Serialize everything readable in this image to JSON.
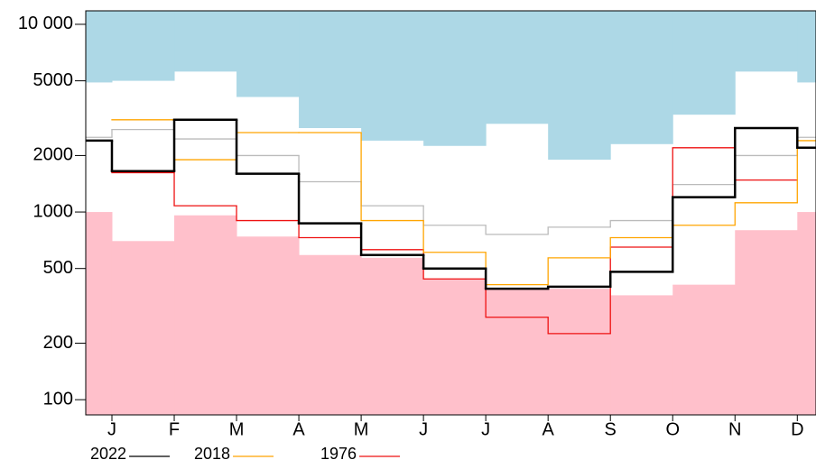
{
  "chart_data": {
    "type": "step",
    "x": [
      -1,
      0,
      1,
      2,
      3,
      4,
      5,
      6,
      7,
      8,
      9,
      10,
      11
    ],
    "xlim": [
      -0.42,
      11.3
    ],
    "xticks": [
      {
        "value": 0,
        "label": "J"
      },
      {
        "value": 1,
        "label": "F"
      },
      {
        "value": 2,
        "label": "M"
      },
      {
        "value": 3,
        "label": "A"
      },
      {
        "value": 4,
        "label": "M"
      },
      {
        "value": 5,
        "label": "J"
      },
      {
        "value": 6,
        "label": "J"
      },
      {
        "value": 7,
        "label": "A"
      },
      {
        "value": 8,
        "label": "S"
      },
      {
        "value": 9,
        "label": "O"
      },
      {
        "value": 10,
        "label": "N"
      },
      {
        "value": 11,
        "label": "D"
      }
    ],
    "ylim": [
      83,
      11800
    ],
    "log_scale": true,
    "yticks": [
      {
        "value": 10000,
        "label": "10 000"
      },
      5000,
      2000,
      1000,
      500,
      200,
      100
    ],
    "upper_band": {
      "color": "#add8e6",
      "values": [
        4900,
        5000,
        5600,
        4100,
        2800,
        2400,
        2250,
        2950,
        1900,
        2300,
        3300,
        5600,
        4900
      ]
    },
    "lower_band": {
      "color": "#ffc0cb",
      "values": [
        1000,
        700,
        960,
        740,
        590,
        570,
        440,
        390,
        390,
        360,
        410,
        800,
        1000
      ]
    },
    "reference_line": {
      "color": "#bbbbbb",
      "values": [
        2500,
        2750,
        2450,
        2000,
        1450,
        1080,
        850,
        760,
        830,
        900,
        1400,
        2000,
        2500
      ]
    },
    "series": [
      {
        "name": "2022",
        "color": "#000000",
        "width": 2.5,
        "values": [
          2400,
          1650,
          3100,
          1600,
          870,
          590,
          500,
          390,
          400,
          480,
          1200,
          2800,
          2200
        ]
      },
      {
        "name": "2018",
        "color": "#ffa500",
        "width": 1.3,
        "values": [
          null,
          3100,
          1900,
          2650,
          2650,
          900,
          610,
          410,
          570,
          730,
          850,
          1120,
          2400
        ]
      },
      {
        "name": "1976",
        "color": "#ee1111",
        "width": 1.3,
        "values": [
          null,
          1620,
          1080,
          900,
          730,
          630,
          440,
          275,
          225,
          650,
          2200,
          1480,
          null
        ]
      }
    ]
  }
}
